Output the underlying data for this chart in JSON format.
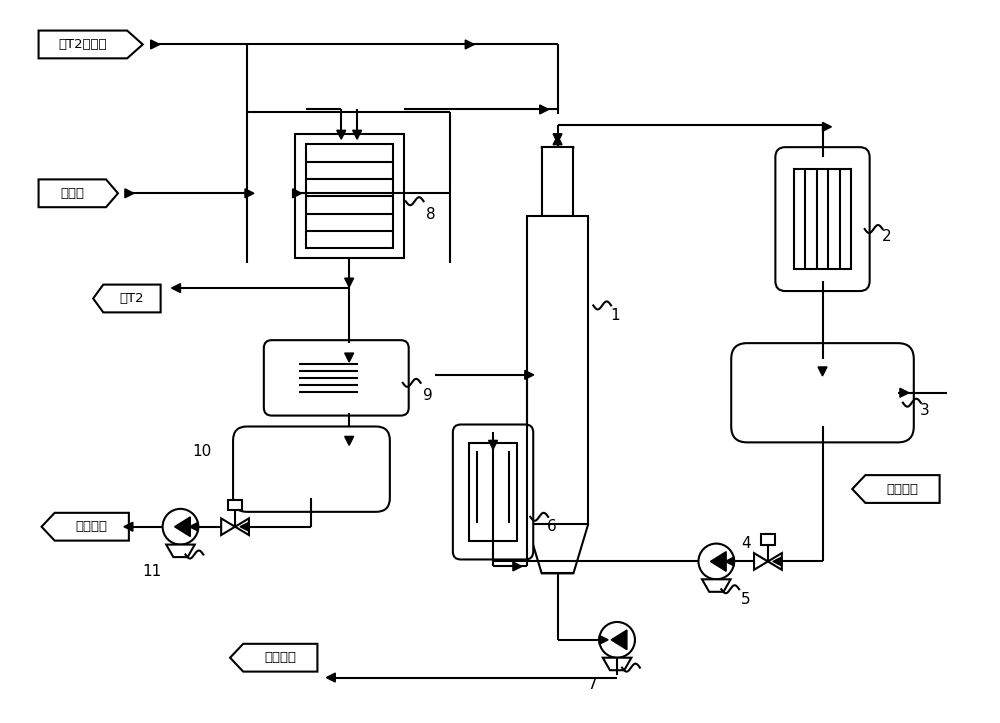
{
  "bg_color": "#ffffff",
  "lw": 1.5,
  "labels": {
    "zi_T2": "自T2塔顶来",
    "leng_jin_liao": "冷进料",
    "qu_T2": "去T2",
    "qu_cpg": "去产品罐"
  },
  "nums": [
    "1",
    "2",
    "3",
    "4",
    "5",
    "6",
    "7",
    "8",
    "9",
    "10",
    "11"
  ],
  "font_size": 9.5,
  "tag_font_size": 9.5
}
